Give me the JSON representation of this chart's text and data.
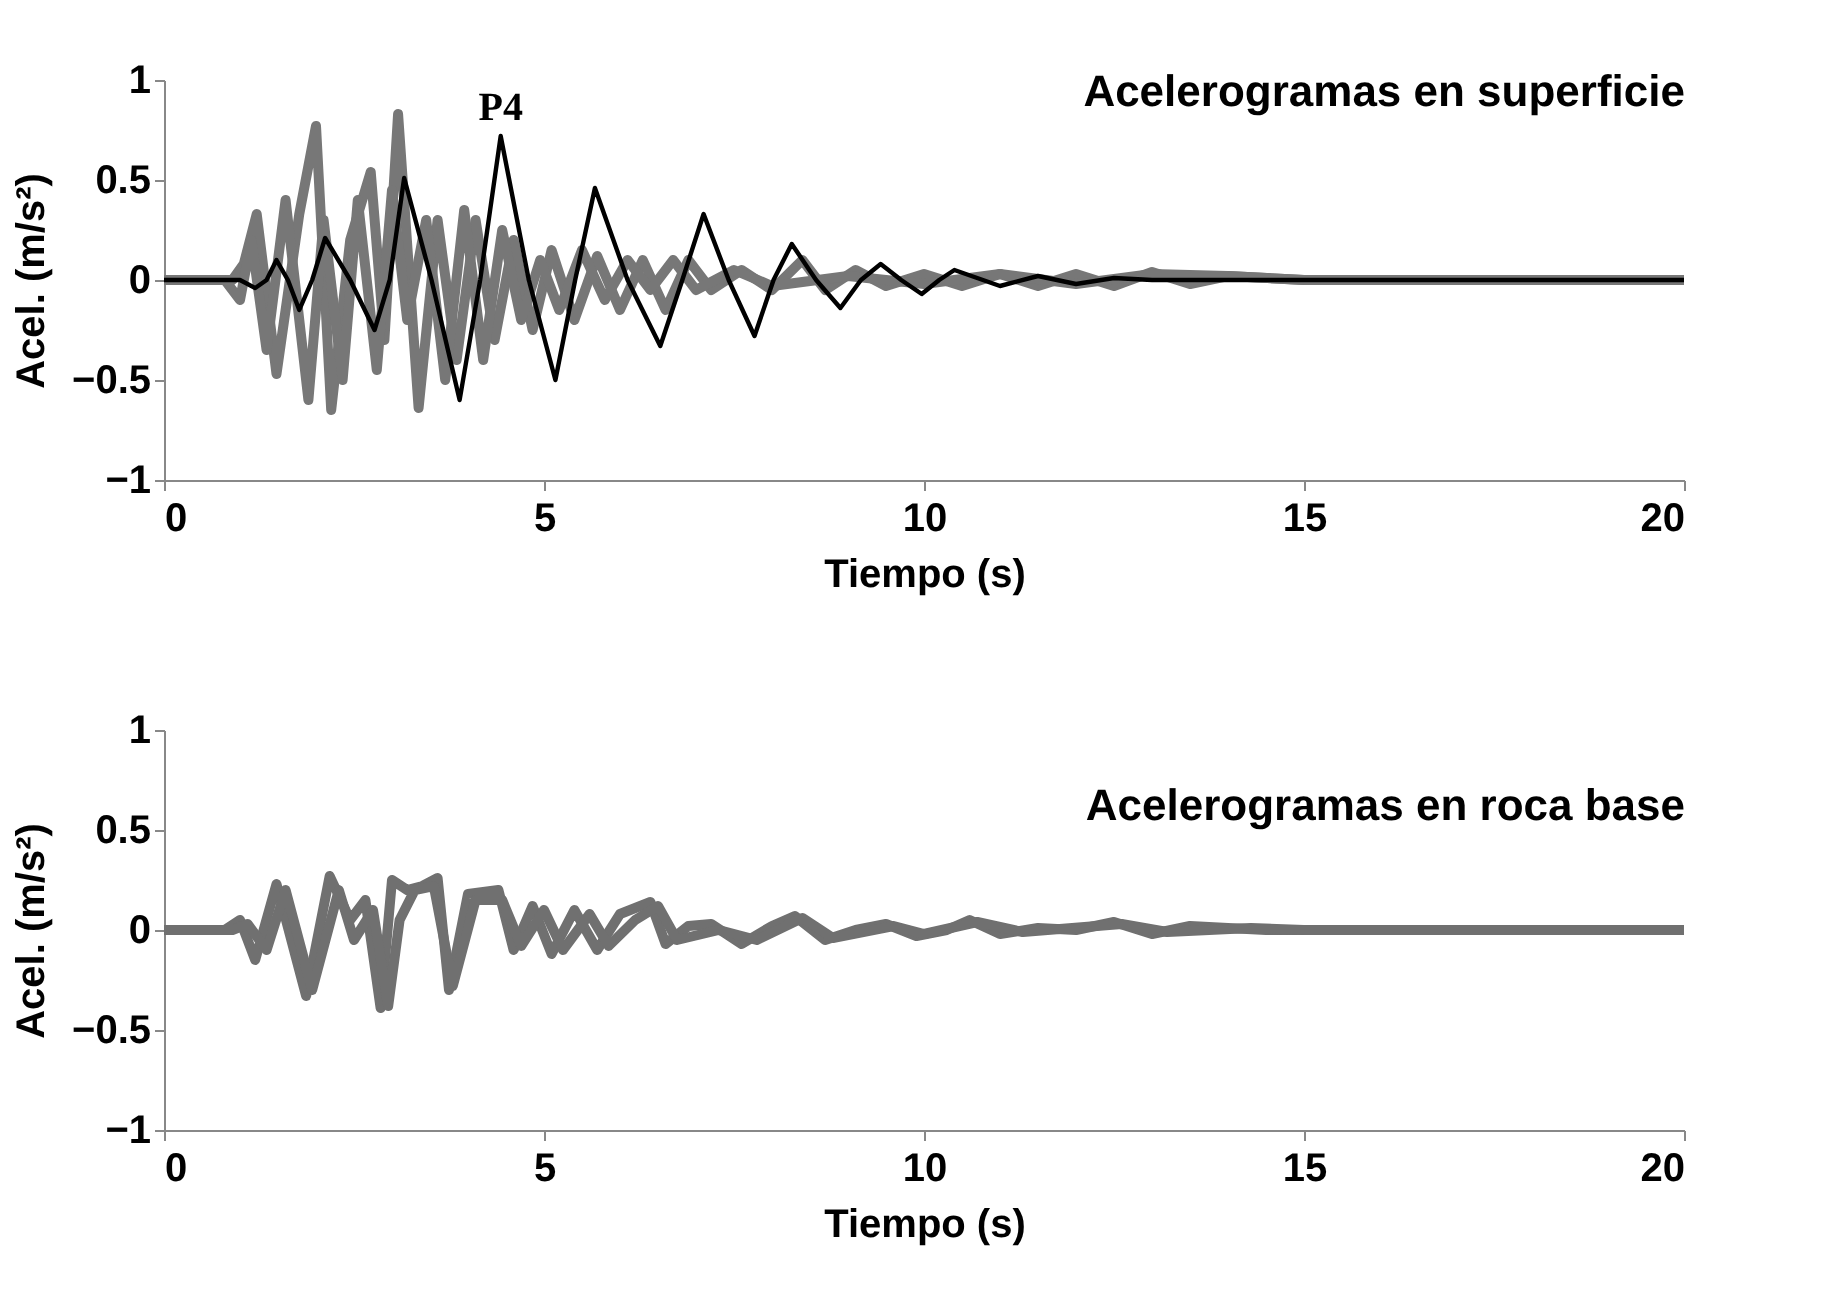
{
  "chart_data": [
    {
      "type": "line",
      "title": "Acelerogramas en superficie",
      "xlabel": "Tiempo (s)",
      "ylabel": "Acel. (m/s²)",
      "xlim": [
        0,
        20
      ],
      "ylim": [
        -1,
        1
      ],
      "xticks": [
        0,
        5,
        10,
        15,
        20
      ],
      "yticks": [
        -1,
        -0.5,
        0,
        0.5,
        1
      ],
      "series": [
        {
          "color": "#777777",
          "x": [
            0,
            0.9,
            1.05,
            1.22,
            1.48,
            1.78,
            2.0,
            2.2,
            2.45,
            2.72,
            2.9,
            3.08,
            3.35,
            3.6,
            3.85,
            4.1,
            4.35,
            4.6,
            4.85,
            5.1,
            5.4,
            5.7,
            6.0,
            6.3,
            6.6,
            6.9,
            7.2,
            7.6,
            8.0,
            8.4,
            8.7,
            9.1,
            9.5,
            10,
            10.5,
            11,
            11.5,
            12,
            12.5,
            13,
            13.5,
            14,
            15,
            20
          ],
          "values": [
            0,
            0,
            0.08,
            0.33,
            -0.47,
            0.33,
            0.77,
            -0.65,
            0.2,
            0.54,
            -0.3,
            0.83,
            -0.64,
            0.3,
            -0.4,
            0.3,
            -0.3,
            0.2,
            -0.25,
            0.15,
            -0.2,
            0.12,
            -0.15,
            0.1,
            -0.15,
            0.1,
            -0.05,
            0.05,
            -0.05,
            0.1,
            -0.05,
            0.05,
            -0.03,
            0.03,
            -0.03,
            0.03,
            -0.03,
            0.03,
            -0.03,
            0.04,
            -0.02,
            0.02,
            0,
            0
          ]
        },
        {
          "color": "#777777",
          "x": [
            0,
            0.8,
            1.0,
            1.15,
            1.35,
            1.6,
            1.9,
            2.1,
            2.35,
            2.55,
            2.8,
            3.0,
            3.2,
            3.45,
            3.7,
            3.95,
            4.2,
            4.45,
            4.7,
            4.95,
            5.2,
            5.5,
            5.8,
            6.1,
            6.4,
            6.7,
            7.0,
            7.5,
            8,
            9,
            10,
            11,
            12,
            13,
            14,
            15,
            20
          ],
          "values": [
            0,
            0,
            -0.1,
            0.2,
            -0.35,
            0.4,
            -0.6,
            0.3,
            -0.5,
            0.4,
            -0.45,
            0.45,
            -0.2,
            0.3,
            -0.5,
            0.35,
            -0.4,
            0.25,
            -0.2,
            0.1,
            -0.15,
            0.15,
            -0.1,
            0.1,
            -0.05,
            0.1,
            -0.05,
            0.05,
            -0.03,
            0.02,
            -0.02,
            0.03,
            -0.02,
            0.03,
            0.02,
            0,
            0
          ]
        },
        {
          "name": "P4",
          "color": "#000000",
          "x": [
            0,
            1.0,
            1.2,
            1.35,
            1.48,
            1.63,
            1.78,
            1.95,
            2.12,
            2.45,
            2.77,
            2.97,
            3.16,
            3.52,
            3.89,
            4.16,
            4.43,
            4.8,
            5.15,
            5.41,
            5.67,
            6.1,
            6.53,
            6.82,
            7.1,
            7.43,
            7.77,
            8.02,
            8.26,
            8.58,
            8.9,
            9.17,
            9.43,
            9.7,
            9.97,
            10.2,
            10.4,
            11,
            11.5,
            12,
            12.5,
            13,
            14,
            20
          ],
          "values": [
            0,
            0,
            -0.04,
            0,
            0.1,
            0,
            -0.15,
            0,
            0.21,
            0,
            -0.25,
            0,
            0.51,
            0,
            -0.6,
            0,
            0.72,
            0,
            -0.5,
            0,
            0.46,
            0,
            -0.33,
            0,
            0.33,
            0,
            -0.28,
            0,
            0.18,
            0,
            -0.14,
            0,
            0.08,
            0,
            -0.07,
            0,
            0.05,
            -0.03,
            0.02,
            -0.02,
            0.01,
            0,
            0,
            0
          ]
        }
      ]
    },
    {
      "type": "line",
      "title": "Acelerogramas en roca base",
      "xlabel": "Tiempo (s)",
      "ylabel": "Acel. (m/s²)",
      "xlim": [
        0,
        20
      ],
      "ylim": [
        -1,
        1
      ],
      "xticks": [
        0,
        5,
        10,
        15,
        20
      ],
      "yticks": [
        -1,
        -0.5,
        0,
        0.5,
        1
      ],
      "series": [
        {
          "color": "#707070",
          "x": [
            0,
            0.8,
            1.0,
            1.2,
            1.48,
            1.87,
            2.18,
            2.45,
            2.65,
            2.85,
            3.0,
            3.2,
            3.4,
            3.6,
            3.75,
            4.0,
            4.4,
            4.6,
            4.85,
            5.1,
            5.4,
            5.7,
            6.0,
            6.4,
            6.6,
            6.9,
            7.2,
            7.6,
            8.0,
            8.3,
            8.7,
            9.1,
            9.5,
            9.9,
            10.3,
            10.6,
            11,
            11.5,
            12,
            12.5,
            13,
            13.5,
            14,
            14.5,
            20
          ],
          "values": [
            0,
            0,
            0.05,
            -0.15,
            0.23,
            -0.33,
            0.27,
            0.05,
            0.15,
            -0.39,
            0.25,
            0.2,
            0.22,
            0.26,
            -0.3,
            0.18,
            0.2,
            -0.1,
            0.12,
            -0.12,
            0.1,
            -0.1,
            0.08,
            0.14,
            -0.07,
            0.02,
            0.03,
            -0.07,
            0.02,
            0.07,
            -0.05,
            0,
            0.03,
            -0.03,
            0,
            0.05,
            -0.02,
            0.01,
            0,
            0.04,
            -0.02,
            0.02,
            0.01,
            0,
            0
          ]
        },
        {
          "color": "#707070",
          "x": [
            0,
            0.9,
            1.1,
            1.35,
            1.6,
            1.95,
            2.3,
            2.5,
            2.75,
            2.95,
            3.1,
            3.3,
            3.55,
            3.8,
            4.1,
            4.45,
            4.7,
            5.0,
            5.25,
            5.6,
            5.85,
            6.2,
            6.5,
            6.75,
            7.3,
            7.8,
            8.4,
            8.8,
            9.6,
            10.0,
            10.7,
            11.3,
            12.6,
            13.2,
            14.3,
            15,
            20
          ],
          "values": [
            0,
            0,
            0.03,
            -0.1,
            0.2,
            -0.3,
            0.2,
            -0.05,
            0.1,
            -0.38,
            0.05,
            0.2,
            0.22,
            -0.28,
            0.15,
            0.15,
            -0.08,
            0.1,
            -0.1,
            0.08,
            -0.08,
            0.05,
            0.12,
            -0.05,
            0,
            -0.05,
            0.06,
            -0.04,
            0.02,
            -0.02,
            0.04,
            -0.01,
            0.03,
            -0.01,
            0.01,
            0,
            0
          ]
        }
      ]
    }
  ]
}
